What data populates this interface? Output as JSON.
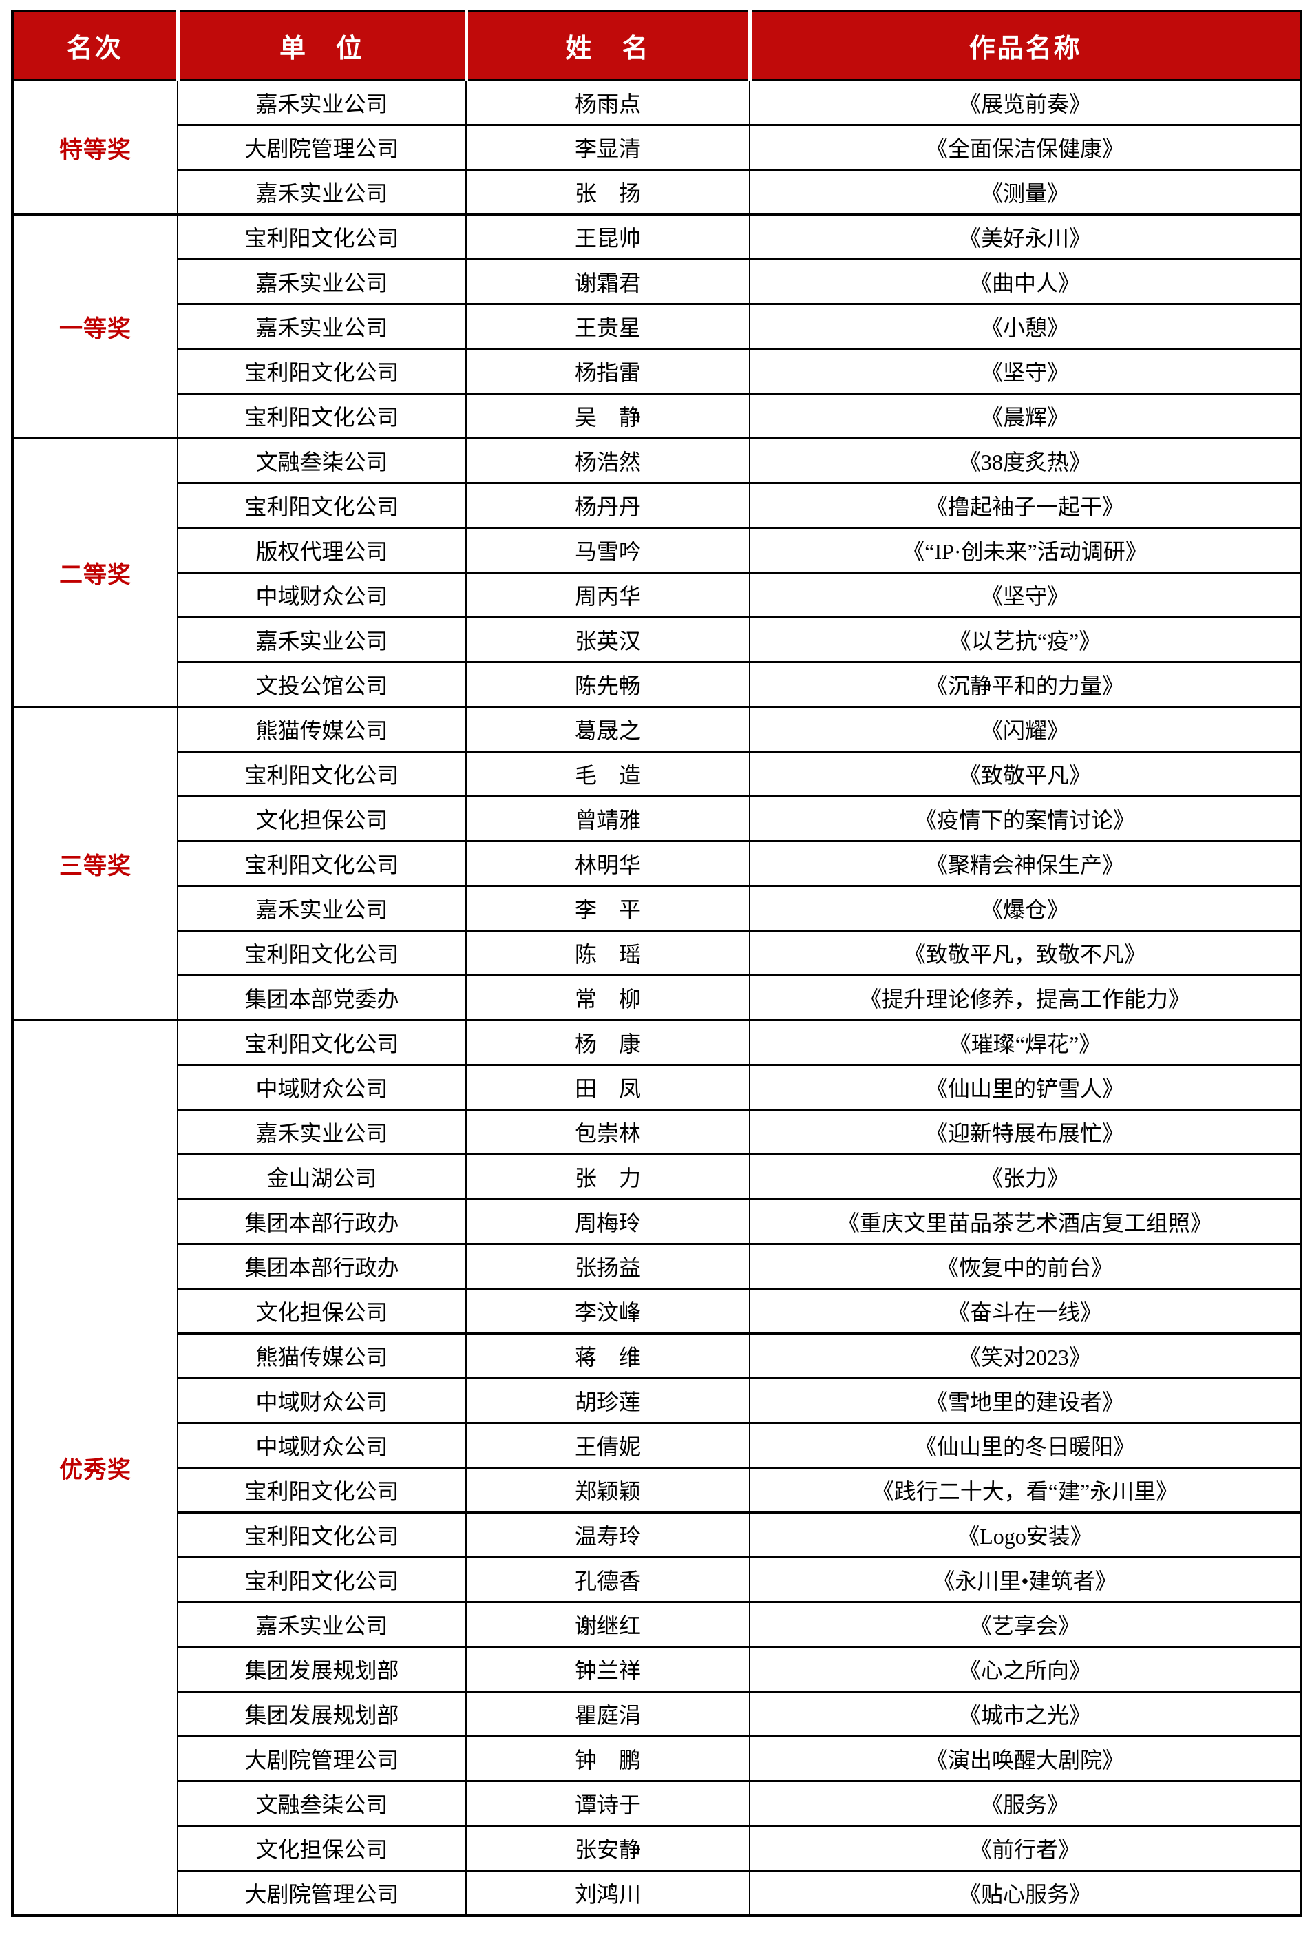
{
  "colors": {
    "header_bg": "#C00A0A",
    "header_text": "#FFFFFF",
    "rank_text": "#C00000",
    "body_text": "#000000",
    "border": "#000000",
    "header_divider": "#FFFFFF"
  },
  "table": {
    "headers": [
      {
        "label": "名次"
      },
      {
        "label": "单　位"
      },
      {
        "label": "姓　名"
      },
      {
        "label": "作品名称"
      }
    ],
    "groups": [
      {
        "rank": "特等奖",
        "entries": [
          {
            "unit": "嘉禾实业公司",
            "name": "杨雨点",
            "work": "《展览前奏》"
          },
          {
            "unit": "大剧院管理公司",
            "name": "李显清",
            "work": "《全面保洁保健康》"
          },
          {
            "unit": "嘉禾实业公司",
            "name": "张　扬",
            "work": "《测量》"
          }
        ]
      },
      {
        "rank": "一等奖",
        "entries": [
          {
            "unit": "宝利阳文化公司",
            "name": "王昆帅",
            "work": "《美好永川》"
          },
          {
            "unit": "嘉禾实业公司",
            "name": "谢霜君",
            "work": "《曲中人》"
          },
          {
            "unit": "嘉禾实业公司",
            "name": "王贵星",
            "work": "《小憩》"
          },
          {
            "unit": "宝利阳文化公司",
            "name": "杨指雷",
            "work": "《坚守》"
          },
          {
            "unit": "宝利阳文化公司",
            "name": "吴　静",
            "work": "《晨辉》"
          }
        ]
      },
      {
        "rank": "二等奖",
        "entries": [
          {
            "unit": "文融叁柒公司",
            "name": "杨浩然",
            "work": "《38度炙热》"
          },
          {
            "unit": "宝利阳文化公司",
            "name": "杨丹丹",
            "work": "《撸起袖子一起干》"
          },
          {
            "unit": "版权代理公司",
            "name": "马雪吟",
            "work": "《“IP·创未来”活动调研》"
          },
          {
            "unit": "中域财众公司",
            "name": "周丙华",
            "work": "《坚守》"
          },
          {
            "unit": "嘉禾实业公司",
            "name": "张英汉",
            "work": "《以艺抗“疫”》"
          },
          {
            "unit": "文投公馆公司",
            "name": "陈先畅",
            "work": "《沉静平和的力量》"
          }
        ]
      },
      {
        "rank": "三等奖",
        "entries": [
          {
            "unit": "熊猫传媒公司",
            "name": "葛晟之",
            "work": "《闪耀》"
          },
          {
            "unit": "宝利阳文化公司",
            "name": "毛　造",
            "work": "《致敬平凡》"
          },
          {
            "unit": "文化担保公司",
            "name": "曾靖雅",
            "work": "《疫情下的案情讨论》"
          },
          {
            "unit": "宝利阳文化公司",
            "name": "林明华",
            "work": "《聚精会神保生产》"
          },
          {
            "unit": "嘉禾实业公司",
            "name": "李　平",
            "work": "《爆仓》"
          },
          {
            "unit": "宝利阳文化公司",
            "name": "陈　瑶",
            "work": "《致敬平凡，致敬不凡》"
          },
          {
            "unit": "集团本部党委办",
            "name": "常　柳",
            "work": "《提升理论修养，提高工作能力》"
          }
        ]
      },
      {
        "rank": "优秀奖",
        "entries": [
          {
            "unit": "宝利阳文化公司",
            "name": "杨　康",
            "work": "《璀璨“焊花”》"
          },
          {
            "unit": "中域财众公司",
            "name": "田　凤",
            "work": "《仙山里的铲雪人》"
          },
          {
            "unit": "嘉禾实业公司",
            "name": "包崇林",
            "work": "《迎新特展布展忙》"
          },
          {
            "unit": "金山湖公司",
            "name": "张　力",
            "work": "《张力》"
          },
          {
            "unit": "集团本部行政办",
            "name": "周梅玲",
            "work": "《重庆文里苗品茶艺术酒店复工组照》"
          },
          {
            "unit": "集团本部行政办",
            "name": "张扬益",
            "work": "《恢复中的前台》"
          },
          {
            "unit": "文化担保公司",
            "name": "李汶峰",
            "work": "《奋斗在一线》"
          },
          {
            "unit": "熊猫传媒公司",
            "name": "蒋　维",
            "work": "《笑对2023》"
          },
          {
            "unit": "中域财众公司",
            "name": "胡珍莲",
            "work": "《雪地里的建设者》"
          },
          {
            "unit": "中域财众公司",
            "name": "王倩妮",
            "work": "《仙山里的冬日暖阳》"
          },
          {
            "unit": "宝利阳文化公司",
            "name": "郑颖颖",
            "work": "《践行二十大，看“建”永川里》"
          },
          {
            "unit": "宝利阳文化公司",
            "name": "温寿玲",
            "work": "《Logo安装》"
          },
          {
            "unit": "宝利阳文化公司",
            "name": "孔德香",
            "work": "《永川里•建筑者》"
          },
          {
            "unit": "嘉禾实业公司",
            "name": "谢继红",
            "work": "《艺享会》"
          },
          {
            "unit": "集团发展规划部",
            "name": "钟兰祥",
            "work": "《心之所向》"
          },
          {
            "unit": "集团发展规划部",
            "name": "瞿庭涓",
            "work": "《城市之光》"
          },
          {
            "unit": "大剧院管理公司",
            "name": "钟　鹏",
            "work": "《演出唤醒大剧院》"
          },
          {
            "unit": "文融叁柒公司",
            "name": "谭诗于",
            "work": "《服务》"
          },
          {
            "unit": "文化担保公司",
            "name": "张安静",
            "work": "《前行者》"
          },
          {
            "unit": "大剧院管理公司",
            "name": "刘鸿川",
            "work": "《贴心服务》"
          }
        ]
      }
    ]
  }
}
